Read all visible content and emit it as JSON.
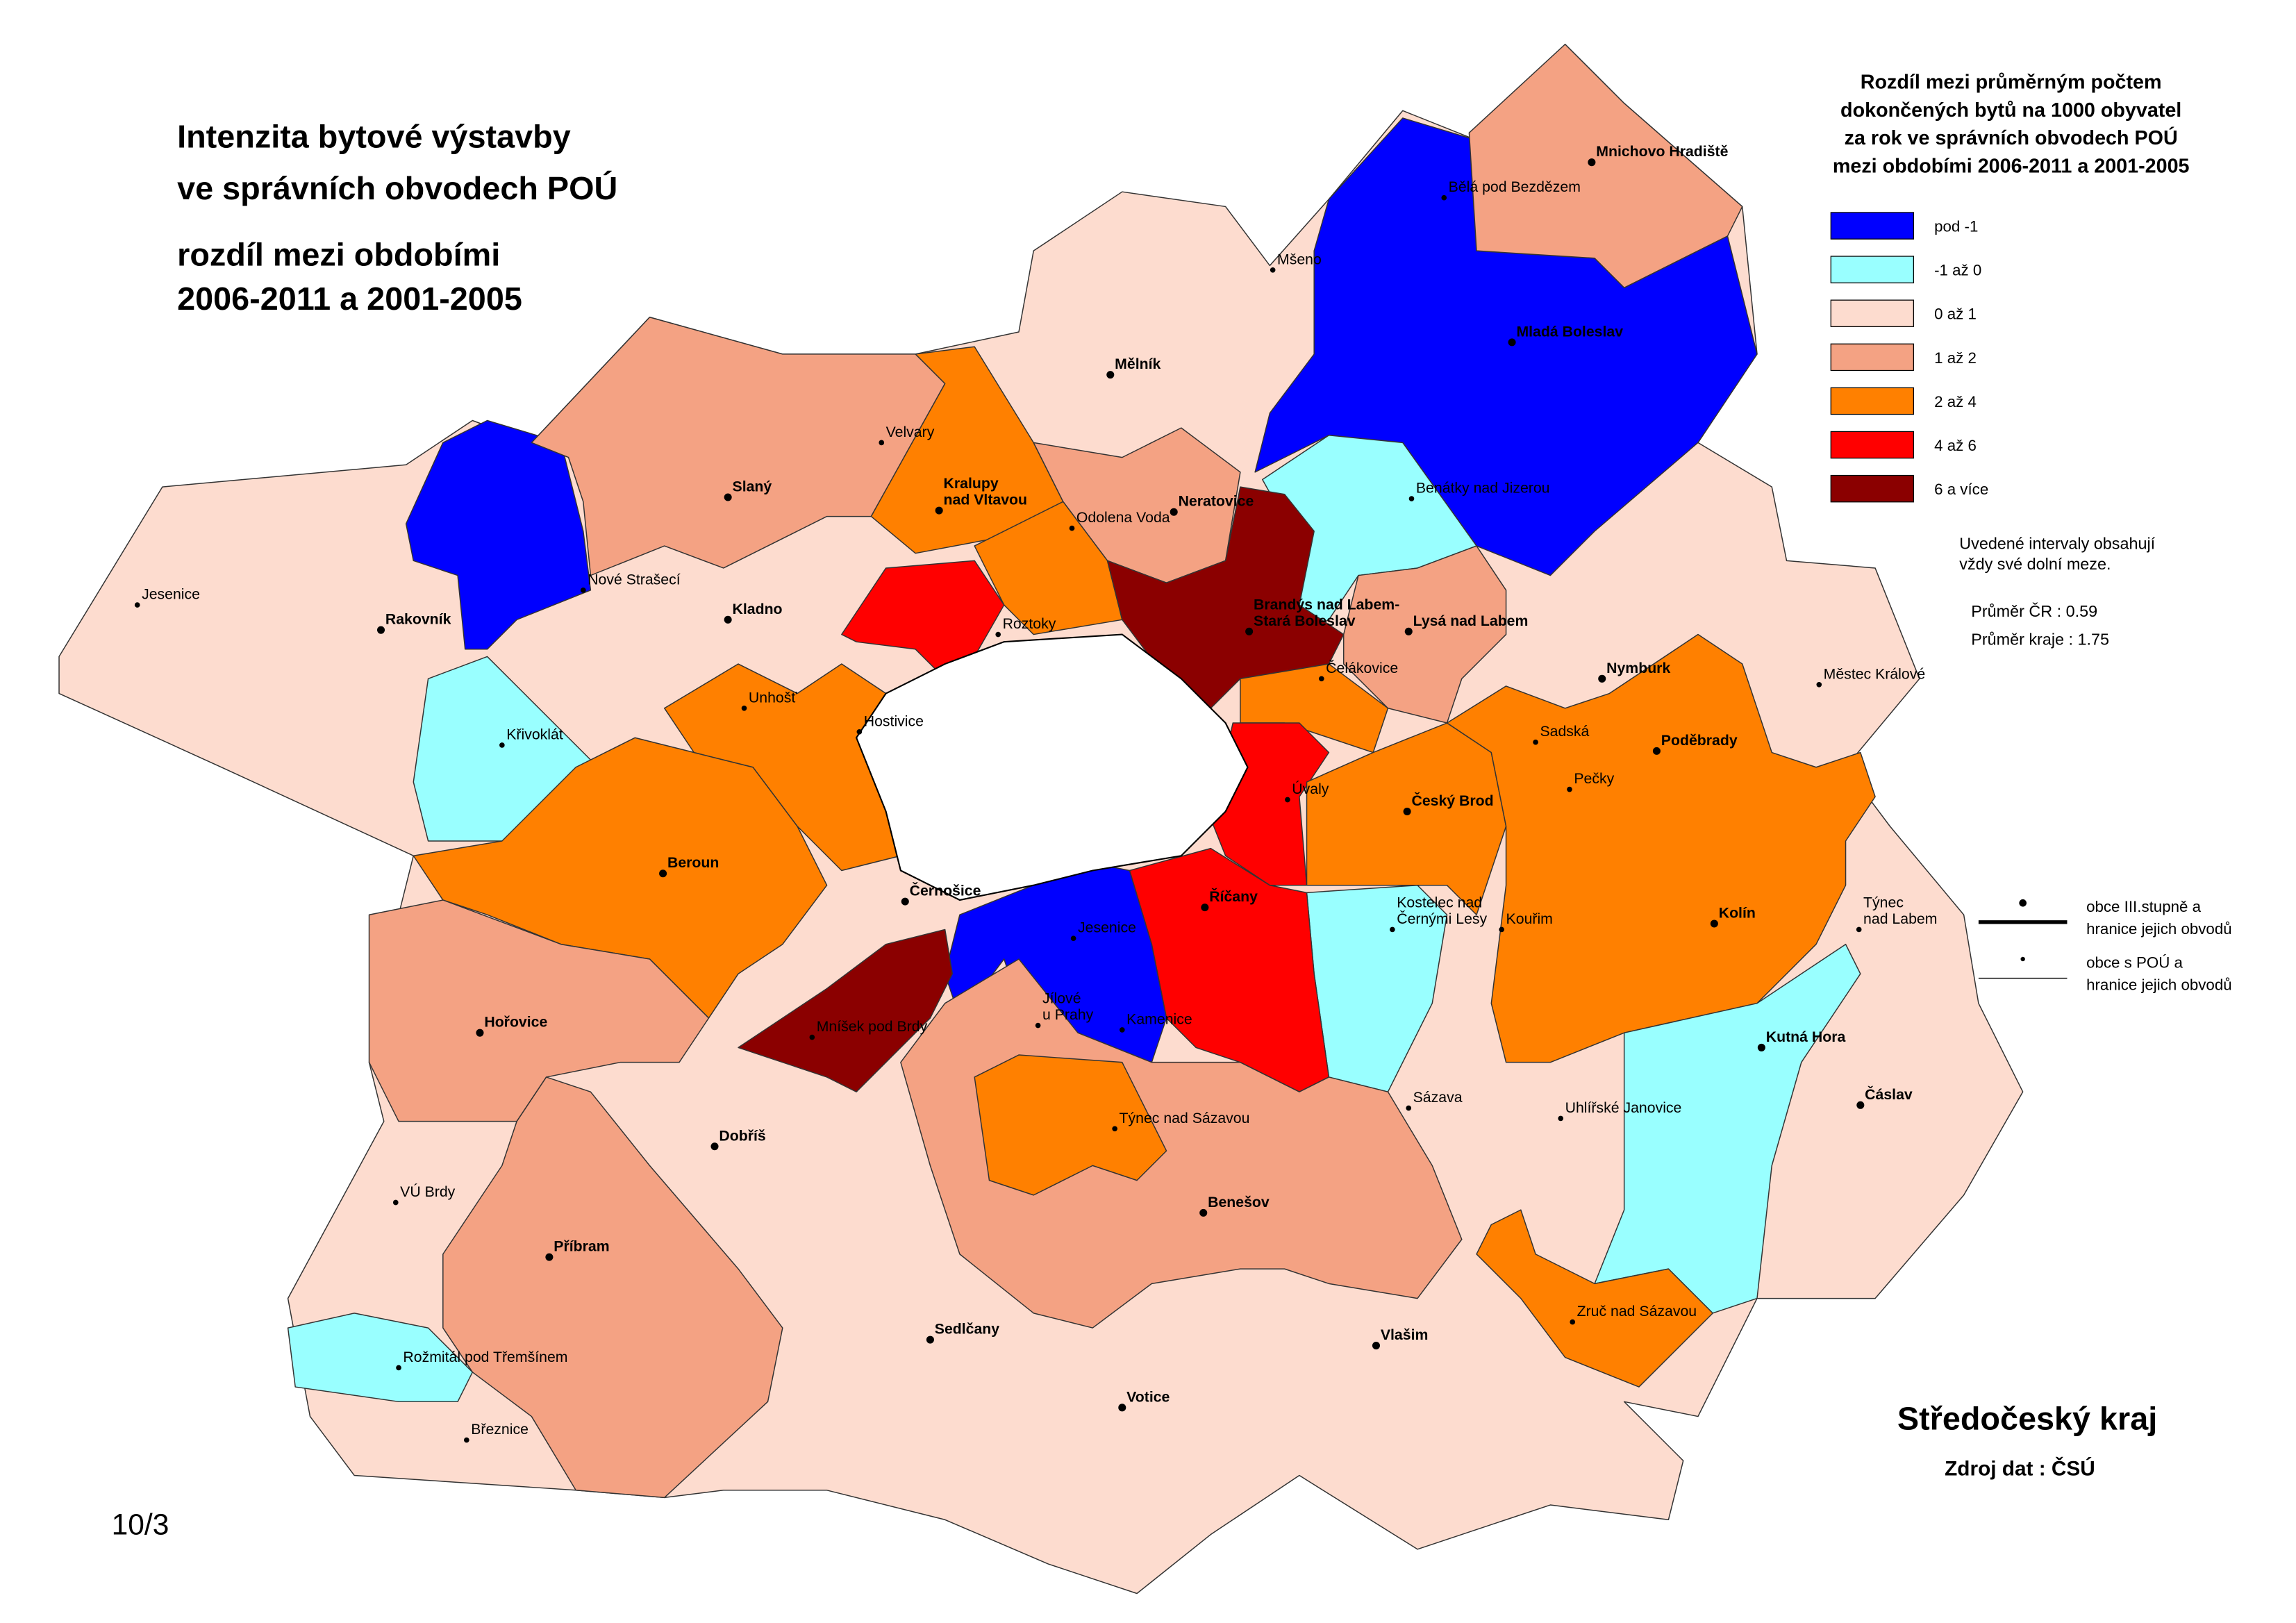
{
  "title": {
    "lines": [
      "Intenzita bytové výstavby",
      "ve správních obvodech POÚ",
      "rozdíl mezi obdobími",
      "2006-2011 a 2001-2005"
    ]
  },
  "legend": {
    "title": [
      "Rozdíl mezi průměrným počtem",
      "dokončených bytů na 1000 obyvatel",
      "za rok ve správních obvodech POÚ",
      "mezi obdobími 2006-2011 a 2001-2005"
    ],
    "items": [
      {
        "label": "pod -1",
        "color": "#0000ff"
      },
      {
        "label": "-1 až 0",
        "color": "#99ffff"
      },
      {
        "label": "0 až 1",
        "color": "#fddccf"
      },
      {
        "label": "1 až 2",
        "color": "#f4a283"
      },
      {
        "label": "2 až 4",
        "color": "#ff8000"
      },
      {
        "label": "4 až 6",
        "color": "#ff0000"
      },
      {
        "label": "6 a více",
        "color": "#8b0000"
      }
    ],
    "note": [
      "Uvedené intervaly obsahují",
      "vždy své dolní meze."
    ],
    "averages": [
      "Průměr ČR : 0.59",
      "Průměr kraje :  1.75"
    ],
    "boundaries": [
      {
        "lines": [
          "obce III.stupně a",
          "hranice jejich obvodů"
        ]
      },
      {
        "lines": [
          "obce s POÚ a",
          "hranice jejich obvodů"
        ]
      }
    ]
  },
  "region": "Středočeský kraj",
  "source": "Zdroj dat : ČSÚ",
  "page": "10/3",
  "places": [
    {
      "lines": [
        "Jesenice"
      ],
      "obec_III": false
    },
    {
      "lines": [
        "Rakovník"
      ],
      "obec_III": true
    },
    {
      "lines": [
        "Nové Strašecí"
      ],
      "obec_III": false
    },
    {
      "lines": [
        "Křivoklát"
      ],
      "obec_III": false
    },
    {
      "lines": [
        "Slaný"
      ],
      "obec_III": true
    },
    {
      "lines": [
        "Velvary"
      ],
      "obec_III": false
    },
    {
      "lines": [
        "Kralupy",
        "nad Vltavou"
      ],
      "obec_III": true
    },
    {
      "lines": [
        "Mělník"
      ],
      "obec_III": true
    },
    {
      "lines": [
        "Mšeno"
      ],
      "obec_III": false
    },
    {
      "lines": [
        "Bělá pod Bezdězem"
      ],
      "obec_III": false
    },
    {
      "lines": [
        "Mnichovo Hradiště"
      ],
      "obec_III": true
    },
    {
      "lines": [
        "Mladá Boleslav"
      ],
      "obec_III": true
    },
    {
      "lines": [
        "Neratovice"
      ],
      "obec_III": true
    },
    {
      "lines": [
        "Odolena Voda"
      ],
      "obec_III": false
    },
    {
      "lines": [
        "Kladno"
      ],
      "obec_III": true
    },
    {
      "lines": [
        "Roztoky"
      ],
      "obec_III": false
    },
    {
      "lines": [
        "Brandýs nad Labem-",
        "Stará Boleslav"
      ],
      "obec_III": true
    },
    {
      "lines": [
        "Benátky nad Jizerou"
      ],
      "obec_III": false
    },
    {
      "lines": [
        "Lysá nad Labem"
      ],
      "obec_III": true
    },
    {
      "lines": [
        "Čelákovice"
      ],
      "obec_III": false
    },
    {
      "lines": [
        "Nymburk"
      ],
      "obec_III": true
    },
    {
      "lines": [
        "Městec Králové"
      ],
      "obec_III": false
    },
    {
      "lines": [
        "Unhošť"
      ],
      "obec_III": false
    },
    {
      "lines": [
        "Hostivice"
      ],
      "obec_III": false
    },
    {
      "lines": [
        "Sadská"
      ],
      "obec_III": false
    },
    {
      "lines": [
        "Poděbrady"
      ],
      "obec_III": true
    },
    {
      "lines": [
        "Úvaly"
      ],
      "obec_III": false
    },
    {
      "lines": [
        "Český Brod"
      ],
      "obec_III": true
    },
    {
      "lines": [
        "Pečky"
      ],
      "obec_III": false
    },
    {
      "lines": [
        "Beroun"
      ],
      "obec_III": true
    },
    {
      "lines": [
        "Černošice"
      ],
      "obec_III": true
    },
    {
      "lines": [
        "Říčany"
      ],
      "obec_III": true
    },
    {
      "lines": [
        "Jesenice"
      ],
      "obec_III": false
    },
    {
      "lines": [
        "Kolín"
      ],
      "obec_III": true
    },
    {
      "lines": [
        "Kostelec nad",
        "Černými Lesy"
      ],
      "obec_III": false
    },
    {
      "lines": [
        "Kouřim"
      ],
      "obec_III": false
    },
    {
      "lines": [
        "Týnec",
        "nad Labem"
      ],
      "obec_III": false
    },
    {
      "lines": [
        "Hořovice"
      ],
      "obec_III": true
    },
    {
      "lines": [
        "Jílové",
        "u Prahy"
      ],
      "obec_III": false
    },
    {
      "lines": [
        "Kamenice"
      ],
      "obec_III": false
    },
    {
      "lines": [
        "Mníšek pod Brdy"
      ],
      "obec_III": false
    },
    {
      "lines": [
        "Kutná Hora"
      ],
      "obec_III": true
    },
    {
      "lines": [
        "Čáslav"
      ],
      "obec_III": true
    },
    {
      "lines": [
        "Sázava"
      ],
      "obec_III": false
    },
    {
      "lines": [
        "Uhlířské Janovice"
      ],
      "obec_III": false
    },
    {
      "lines": [
        "Dobříš"
      ],
      "obec_III": true
    },
    {
      "lines": [
        "Týnec nad Sázavou"
      ],
      "obec_III": false
    },
    {
      "lines": [
        "Benešov"
      ],
      "obec_III": true
    },
    {
      "lines": [
        "VÚ Brdy"
      ],
      "obec_III": false
    },
    {
      "lines": [
        "Příbram"
      ],
      "obec_III": true
    },
    {
      "lines": [
        "Zruč nad Sázavou"
      ],
      "obec_III": false
    },
    {
      "lines": [
        "Sedlčany"
      ],
      "obec_III": true
    },
    {
      "lines": [
        "Vlašim"
      ],
      "obec_III": true
    },
    {
      "lines": [
        "Rožmitál pod Třemšínem"
      ],
      "obec_III": false
    },
    {
      "lines": [
        "Votice"
      ],
      "obec_III": true
    },
    {
      "lines": [
        "Březnice"
      ],
      "obec_III": false
    }
  ]
}
